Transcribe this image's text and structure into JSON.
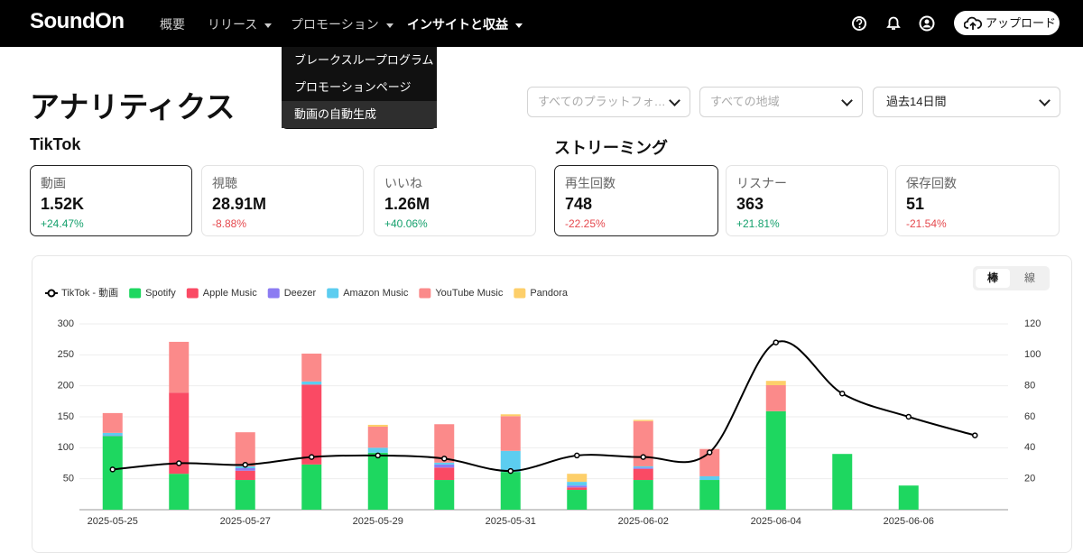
{
  "header": {
    "logo": "SoundOn",
    "nav": [
      "概要",
      "リリース",
      "プロモーション",
      "インサイトと収益"
    ],
    "upload": "アップロード"
  },
  "menu": {
    "items": [
      "ブレークスループログラム",
      "プロモーションページ",
      "動画の自動生成"
    ]
  },
  "page": {
    "title": "アナリティクス",
    "filters": [
      "すべてのプラットフォ…",
      "すべての地域",
      "過去14日間"
    ]
  },
  "tiktok": {
    "title": "TikTok",
    "cards": [
      {
        "label": "動画",
        "value": "1.52K",
        "change": "+24.47%",
        "selected": true
      },
      {
        "label": "視聴",
        "value": "28.91M",
        "change": "-8.88%",
        "selected": false
      },
      {
        "label": "いいね",
        "value": "1.26M",
        "change": "+40.06%",
        "selected": false
      }
    ]
  },
  "streaming": {
    "title": "ストリーミング",
    "cards": [
      {
        "label": "再生回数",
        "value": "748",
        "change": "-22.25%",
        "selected": true
      },
      {
        "label": "リスナー",
        "value": "363",
        "change": "+21.81%",
        "selected": false
      },
      {
        "label": "保存回数",
        "value": "51",
        "change": "-21.54%",
        "selected": false
      }
    ]
  },
  "toggle": [
    "棒",
    "線"
  ],
  "chart_data": {
    "type": "bar",
    "stacked": true,
    "categories": [
      "2025-05-25",
      null,
      "2025-05-27",
      null,
      "2025-05-29",
      null,
      "2025-05-31",
      null,
      "2025-06-02",
      null,
      "2025-06-04",
      null,
      "2025-06-06",
      null
    ],
    "series": [
      {
        "name": "TikTok - 動画",
        "type": "line",
        "axis": "y2",
        "color": "#000000",
        "values": [
          26,
          30,
          29,
          34,
          35,
          33,
          25,
          35,
          34,
          37,
          108,
          75,
          60,
          48
        ]
      },
      {
        "name": "Spotify",
        "color": "#1ed760",
        "values": [
          119,
          58,
          48,
          73,
          92,
          48,
          61,
          32,
          48,
          48,
          159,
          90,
          39,
          0
        ]
      },
      {
        "name": "Apple Music",
        "color": "#fa4a64",
        "values": [
          0,
          131,
          15,
          129,
          0,
          20,
          0,
          4,
          18,
          0,
          0,
          0,
          0,
          0
        ]
      },
      {
        "name": "Deezer",
        "color": "#8c7cf2",
        "values": [
          1,
          0,
          4,
          0,
          0,
          5,
          0,
          3,
          2,
          0,
          0,
          0,
          0,
          0
        ]
      },
      {
        "name": "Amazon Music",
        "color": "#5ccdf0",
        "values": [
          4,
          0,
          3,
          5,
          8,
          3,
          34,
          6,
          2,
          6,
          0,
          0,
          0,
          0
        ]
      },
      {
        "name": "YouTube Music",
        "color": "#fb8a8a",
        "values": [
          32,
          82,
          55,
          45,
          34,
          62,
          56,
          0,
          73,
          44,
          42,
          0,
          0,
          0
        ]
      },
      {
        "name": "Pandora",
        "color": "#fdcf6a",
        "values": [
          0,
          0,
          0,
          0,
          3,
          0,
          3,
          13,
          2,
          0,
          7,
          0,
          0,
          0
        ]
      }
    ],
    "ylim": [
      0,
      300
    ],
    "yticks": [
      50,
      100,
      150,
      200,
      250,
      300
    ],
    "y2lim": [
      0,
      120
    ],
    "y2ticks": [
      20,
      40,
      60,
      80,
      100,
      120
    ],
    "grid": true,
    "legend": "top-left"
  }
}
